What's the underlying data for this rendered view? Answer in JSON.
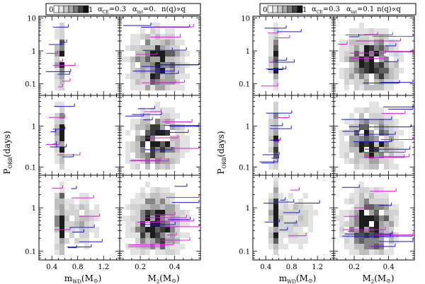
{
  "chart_data": {
    "type": "heatmap",
    "description_layers": [
      "density",
      "errorbars"
    ],
    "figures": [
      {
        "legend": {
          "scale_min_label": "0",
          "scale_max_label": "1",
          "title_text": "α_CE=0.3  α_int=0.  n(q)∝q",
          "alpha_ce": "α",
          "alpha_ce_sub": "CE",
          "alpha_ce_val": "=0.3",
          "alpha_int": "α",
          "alpha_int_sub": "int",
          "alpha_int_val": "=0.",
          "nq": "n(q)∝q"
        }
      },
      {
        "legend": {
          "scale_min_label": "0",
          "scale_max_label": "1",
          "title_text": "α_CE=0.3  α_int=0.1  n(q)∝q",
          "alpha_ce": "α",
          "alpha_ce_sub": "CE",
          "alpha_ce_val": "=0.3",
          "alpha_int": "α",
          "alpha_int_sub": "int",
          "alpha_int_val": "=0.1",
          "nq": "n(q)∝q"
        }
      }
    ],
    "axes": {
      "ylabel": "P",
      "ylabel_sub": "ORB",
      "ylabel_unit": "(days)",
      "y_scale": "log",
      "y_ticks_top_row": [
        "10",
        "1",
        "0.1"
      ],
      "y_ticks_other_rows": [
        "1",
        "0.1"
      ],
      "xlabel_left": "m",
      "xlabel_left_sub": "WD",
      "xlabel_left_unit": "(M",
      "xlabel_left_unit_close": ")",
      "xlabel_right": "M",
      "xlabel_right_sub": "2",
      "xlabel_right_unit": "(M",
      "xlabel_right_unit_close": ")",
      "sun_symbol": "⊙",
      "x_ticks_left": [
        "0.4",
        "0.8",
        "1.2"
      ],
      "x_ticks_right": [
        "0.2",
        "0.4"
      ],
      "x_range_left": [
        0.2,
        1.45
      ],
      "x_range_right": [
        0.08,
        0.55
      ]
    },
    "series_colors": {
      "density": "#000000",
      "observed_blue": "#1a1acc",
      "observed_magenta": "#d81ed8"
    },
    "rows": [
      "row1",
      "row2",
      "row3"
    ]
  }
}
